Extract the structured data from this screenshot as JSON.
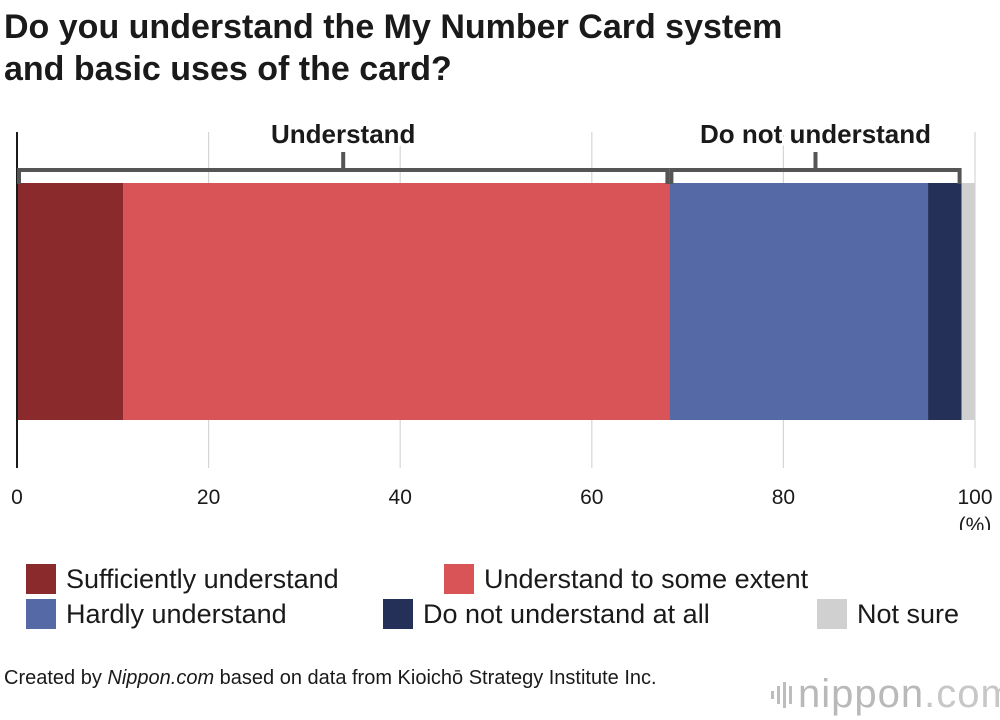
{
  "title_line1": "Do you understand the My Number Card system",
  "title_line2": "and basic uses of the card?",
  "chart_data": {
    "type": "bar",
    "orientation": "horizontal",
    "stacked": true,
    "xlim": [
      0,
      100
    ],
    "xticks": [
      0,
      20,
      40,
      60,
      80,
      100
    ],
    "xunit": "(%)",
    "grid": true,
    "series": [
      {
        "name": "Sufficiently understand",
        "value": 11.1,
        "color": "#8b2a2d"
      },
      {
        "name": "Understand to some extent",
        "value": 57.0,
        "color": "#d95457"
      },
      {
        "name": "Hardly understand",
        "value": 27.0,
        "color": "#5469a6"
      },
      {
        "name": "Do not understand at all",
        "value": 3.5,
        "color": "#243058"
      },
      {
        "name": "Not sure",
        "value": 1.4,
        "color": "#d0d0d0"
      }
    ],
    "brackets": [
      {
        "label": "Understand",
        "from": 0,
        "to": 68.1
      },
      {
        "label": "Do not understand",
        "from": 68.1,
        "to": 98.6
      }
    ]
  },
  "legend": [
    {
      "label": "Sufficiently understand",
      "color": "#8b2a2d"
    },
    {
      "label": "Understand to some extent",
      "color": "#d95457"
    },
    {
      "label": "Hardly understand",
      "color": "#5469a6"
    },
    {
      "label": "Do not understand at all",
      "color": "#243058"
    },
    {
      "label": "Not sure",
      "color": "#d0d0d0"
    }
  ],
  "source": {
    "prefix": "Created by ",
    "site": "Nippon.com",
    "suffix": " based on data from Kioichō Strategy Institute Inc."
  },
  "logo": {
    "brand": "nippon",
    "tld": ".com"
  }
}
